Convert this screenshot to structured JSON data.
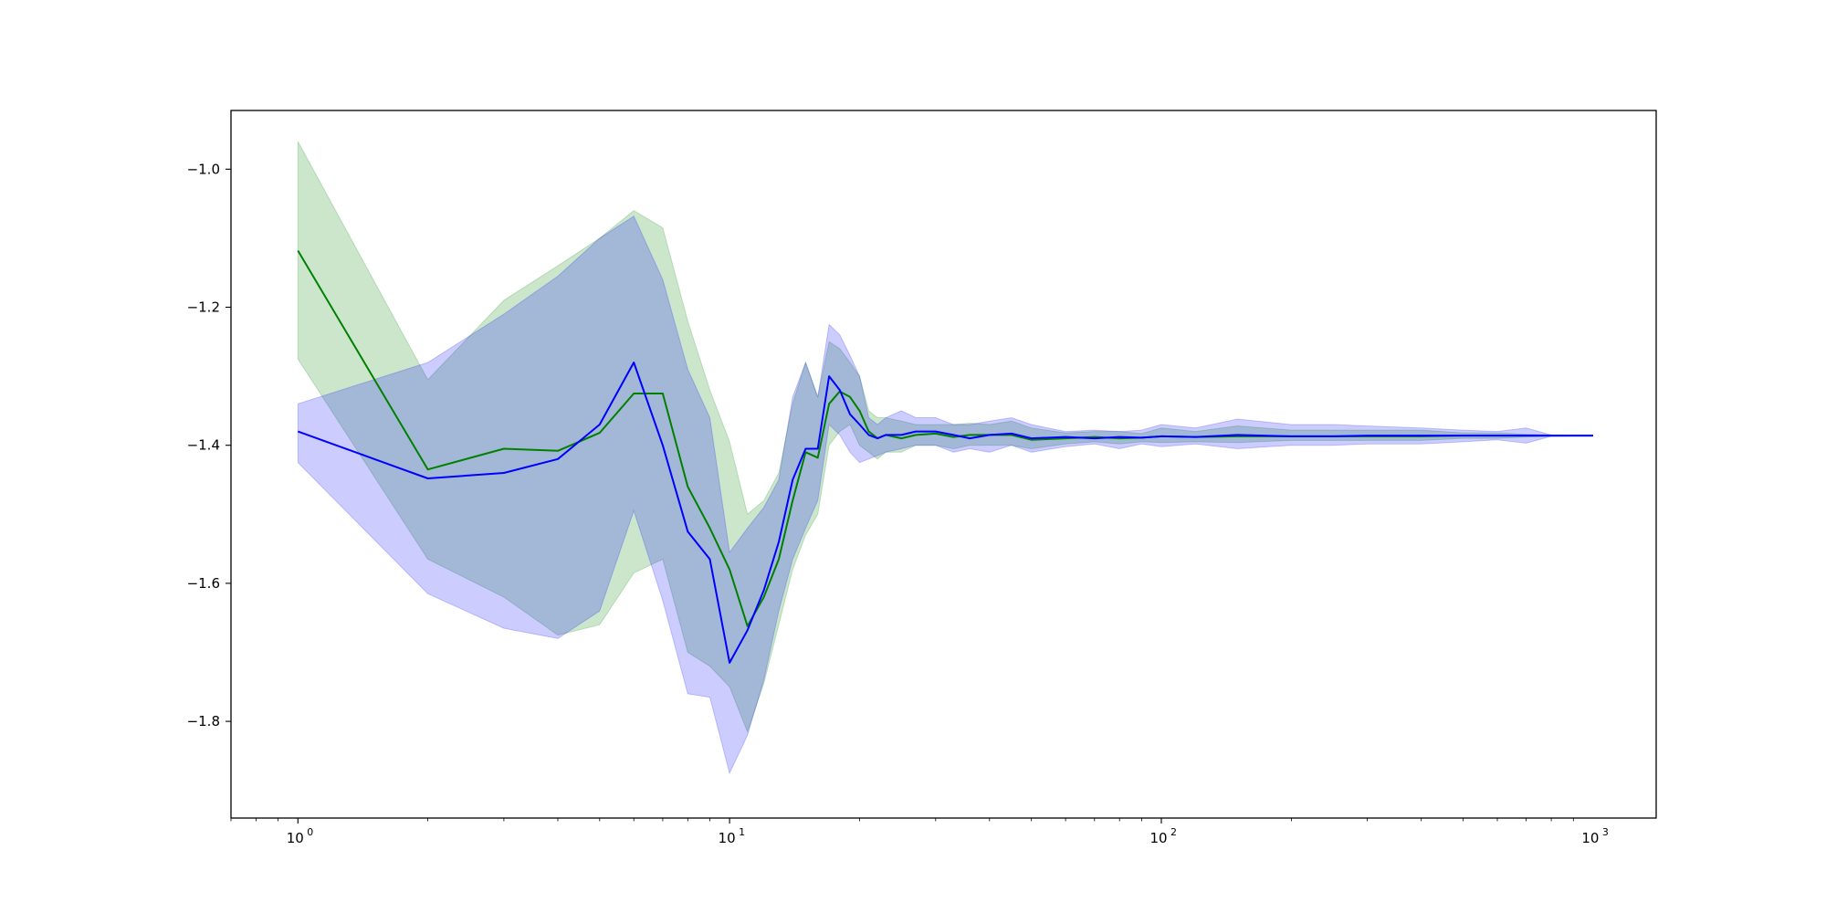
{
  "chart_data": {
    "type": "line",
    "title": "",
    "xlabel": "",
    "ylabel": "",
    "x_scale": "log",
    "xlim": [
      0.7,
      1400
    ],
    "ylim": [
      -1.94,
      -0.915
    ],
    "grid": false,
    "legend": "none",
    "x_ticks": [
      {
        "base": "10",
        "exp": "0",
        "value": 1
      },
      {
        "base": "10",
        "exp": "1",
        "value": 10
      },
      {
        "base": "10",
        "exp": "2",
        "value": 100
      },
      {
        "base": "10",
        "exp": "3",
        "value": 1000
      }
    ],
    "y_ticks": [
      {
        "label": "−1.0",
        "value": -1.0
      },
      {
        "label": "−1.2",
        "value": -1.2
      },
      {
        "label": "−1.4",
        "value": -1.4
      },
      {
        "label": "−1.6",
        "value": -1.6
      },
      {
        "label": "−1.8",
        "value": -1.8
      }
    ],
    "colors": {
      "green_line": "#008000",
      "green_band": "#008000",
      "blue_line": "#0000ff",
      "blue_band": "#0000ff"
    },
    "series": [
      {
        "color": "green",
        "x": [
          1,
          2,
          3,
          4,
          5,
          6,
          7,
          8,
          9,
          10,
          11,
          12,
          13,
          14,
          15,
          16,
          17,
          18,
          19,
          20,
          21,
          22,
          23,
          25,
          27,
          30,
          33,
          36,
          40,
          45,
          50,
          60,
          70,
          80,
          90,
          100,
          120,
          150,
          200,
          250,
          300,
          400,
          500,
          600,
          700,
          800,
          1000
        ],
        "y": [
          -1.118,
          -1.435,
          -1.405,
          -1.408,
          -1.382,
          -1.325,
          -1.325,
          -1.46,
          -1.52,
          -1.58,
          -1.662,
          -1.62,
          -1.565,
          -1.48,
          -1.41,
          -1.418,
          -1.34,
          -1.322,
          -1.33,
          -1.35,
          -1.38,
          -1.39,
          -1.385,
          -1.39,
          -1.385,
          -1.383,
          -1.388,
          -1.385,
          -1.385,
          -1.385,
          -1.392,
          -1.39,
          -1.388,
          -1.39,
          -1.389,
          -1.387,
          -1.388,
          -1.387,
          -1.387,
          -1.387,
          -1.387,
          -1.387,
          -1.386,
          -1.386,
          -1.386,
          -1.386,
          -1.386
        ],
        "upper": [
          -0.96,
          -1.305,
          -1.19,
          -1.14,
          -1.1,
          -1.06,
          -1.085,
          -1.22,
          -1.32,
          -1.395,
          -1.5,
          -1.48,
          -1.44,
          -1.34,
          -1.28,
          -1.33,
          -1.25,
          -1.26,
          -1.28,
          -1.3,
          -1.35,
          -1.36,
          -1.36,
          -1.365,
          -1.37,
          -1.37,
          -1.37,
          -1.368,
          -1.37,
          -1.365,
          -1.375,
          -1.382,
          -1.38,
          -1.38,
          -1.383,
          -1.375,
          -1.38,
          -1.372,
          -1.378,
          -1.378,
          -1.378,
          -1.378,
          -1.382,
          -1.382,
          -1.384,
          -1.385,
          -1.386
        ],
        "lower": [
          -1.275,
          -1.565,
          -1.62,
          -1.675,
          -1.66,
          -1.585,
          -1.565,
          -1.7,
          -1.72,
          -1.75,
          -1.815,
          -1.745,
          -1.66,
          -1.58,
          -1.53,
          -1.5,
          -1.4,
          -1.38,
          -1.37,
          -1.4,
          -1.41,
          -1.42,
          -1.41,
          -1.41,
          -1.4,
          -1.4,
          -1.405,
          -1.4,
          -1.4,
          -1.4,
          -1.405,
          -1.398,
          -1.395,
          -1.398,
          -1.395,
          -1.396,
          -1.395,
          -1.396,
          -1.393,
          -1.393,
          -1.393,
          -1.393,
          -1.39,
          -1.39,
          -1.388,
          -1.387,
          -1.386
        ]
      },
      {
        "color": "blue",
        "x": [
          1,
          2,
          3,
          4,
          5,
          6,
          7,
          8,
          9,
          10,
          11,
          12,
          13,
          14,
          15,
          16,
          17,
          18,
          19,
          20,
          21,
          22,
          23,
          25,
          27,
          30,
          33,
          36,
          40,
          45,
          50,
          60,
          70,
          80,
          90,
          100,
          120,
          150,
          200,
          250,
          300,
          400,
          500,
          600,
          700,
          800,
          1000
        ],
        "y": [
          -1.38,
          -1.448,
          -1.44,
          -1.42,
          -1.37,
          -1.28,
          -1.4,
          -1.525,
          -1.565,
          -1.715,
          -1.668,
          -1.61,
          -1.54,
          -1.45,
          -1.405,
          -1.405,
          -1.3,
          -1.32,
          -1.355,
          -1.37,
          -1.385,
          -1.39,
          -1.385,
          -1.385,
          -1.38,
          -1.38,
          -1.385,
          -1.39,
          -1.385,
          -1.383,
          -1.39,
          -1.388,
          -1.39,
          -1.388,
          -1.389,
          -1.387,
          -1.388,
          -1.385,
          -1.387,
          -1.387,
          -1.386,
          -1.386,
          -1.386,
          -1.386,
          -1.386,
          -1.386,
          -1.386
        ],
        "upper": [
          -1.34,
          -1.28,
          -1.21,
          -1.155,
          -1.1,
          -1.068,
          -1.16,
          -1.29,
          -1.36,
          -1.555,
          -1.52,
          -1.49,
          -1.45,
          -1.33,
          -1.28,
          -1.33,
          -1.225,
          -1.24,
          -1.27,
          -1.3,
          -1.36,
          -1.37,
          -1.36,
          -1.35,
          -1.36,
          -1.36,
          -1.37,
          -1.37,
          -1.365,
          -1.36,
          -1.37,
          -1.38,
          -1.378,
          -1.38,
          -1.378,
          -1.37,
          -1.375,
          -1.362,
          -1.37,
          -1.37,
          -1.372,
          -1.375,
          -1.378,
          -1.38,
          -1.375,
          -1.385,
          -1.386
        ],
        "lower": [
          -1.425,
          -1.615,
          -1.665,
          -1.68,
          -1.64,
          -1.495,
          -1.625,
          -1.76,
          -1.765,
          -1.875,
          -1.82,
          -1.74,
          -1.64,
          -1.565,
          -1.52,
          -1.48,
          -1.37,
          -1.385,
          -1.41,
          -1.425,
          -1.42,
          -1.415,
          -1.41,
          -1.405,
          -1.4,
          -1.4,
          -1.41,
          -1.405,
          -1.41,
          -1.4,
          -1.41,
          -1.402,
          -1.398,
          -1.405,
          -1.398,
          -1.402,
          -1.398,
          -1.405,
          -1.4,
          -1.4,
          -1.398,
          -1.398,
          -1.395,
          -1.392,
          -1.397,
          -1.387,
          -1.386
        ]
      }
    ]
  }
}
